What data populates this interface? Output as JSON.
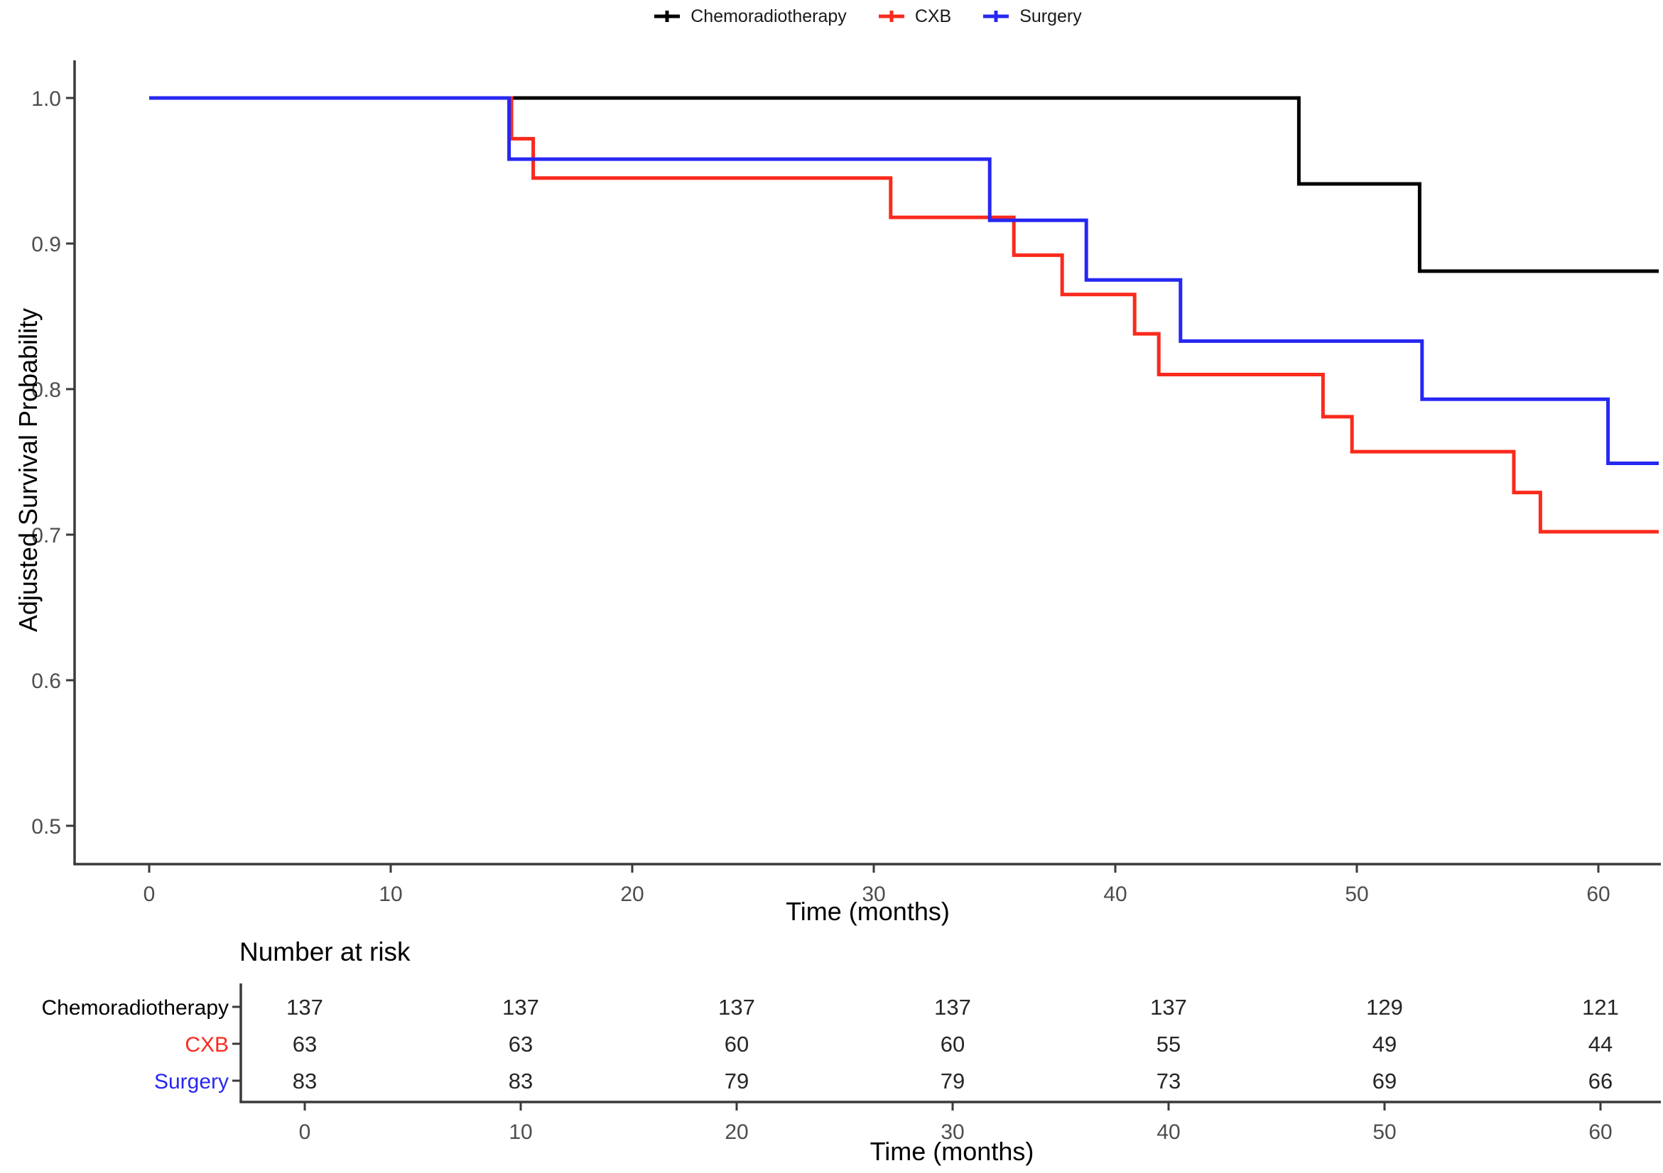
{
  "legend": {
    "items": [
      {
        "label": "Chemoradiotherapy",
        "color": "#000000"
      },
      {
        "label": "CXB",
        "color": "#fa2a1d"
      },
      {
        "label": "Surgery",
        "color": "#2727f2"
      }
    ]
  },
  "chart_data": {
    "type": "line",
    "subtype": "kaplan-meier-step",
    "title": "",
    "xlabel": "Time (months)",
    "ylabel": "Adjusted Survival Probability",
    "xlim": [
      0,
      62.5
    ],
    "ylim": [
      0.474,
      1.0
    ],
    "x_ticks": [
      0,
      10,
      20,
      30,
      40,
      50,
      60
    ],
    "y_tick_values": [
      1.0,
      0.9,
      0.8,
      0.7,
      0.6,
      0.5
    ],
    "y_tick_labels": [
      "1.0",
      "0.9",
      "0.8",
      "0.7",
      "0.6",
      "0.5"
    ],
    "grid": false,
    "legend_position": "top",
    "series": [
      {
        "name": "Chemoradiotherapy",
        "color": "#000000",
        "steps": [
          [
            0,
            1.0
          ],
          [
            47.6,
            1.0
          ],
          [
            47.6,
            0.941
          ],
          [
            52.6,
            0.941
          ],
          [
            52.6,
            0.881
          ],
          [
            62.5,
            0.881
          ]
        ]
      },
      {
        "name": "CXB",
        "color": "#fa2a1d",
        "steps": [
          [
            0,
            1.0
          ],
          [
            15.0,
            1.0
          ],
          [
            15.0,
            0.972
          ],
          [
            15.9,
            0.972
          ],
          [
            15.9,
            0.945
          ],
          [
            30.7,
            0.945
          ],
          [
            30.7,
            0.918
          ],
          [
            35.8,
            0.918
          ],
          [
            35.8,
            0.892
          ],
          [
            37.8,
            0.892
          ],
          [
            37.8,
            0.865
          ],
          [
            40.8,
            0.865
          ],
          [
            40.8,
            0.838
          ],
          [
            41.8,
            0.838
          ],
          [
            41.8,
            0.81
          ],
          [
            48.6,
            0.81
          ],
          [
            48.6,
            0.781
          ],
          [
            49.8,
            0.781
          ],
          [
            49.8,
            0.757
          ],
          [
            56.5,
            0.757
          ],
          [
            56.5,
            0.729
          ],
          [
            57.6,
            0.729
          ],
          [
            57.6,
            0.702
          ],
          [
            62.5,
            0.702
          ]
        ]
      },
      {
        "name": "Surgery",
        "color": "#2727f2",
        "steps": [
          [
            0,
            1.0
          ],
          [
            14.9,
            1.0
          ],
          [
            14.9,
            0.958
          ],
          [
            34.8,
            0.958
          ],
          [
            34.8,
            0.916
          ],
          [
            38.8,
            0.916
          ],
          [
            38.8,
            0.875
          ],
          [
            42.7,
            0.875
          ],
          [
            42.7,
            0.833
          ],
          [
            52.7,
            0.833
          ],
          [
            52.7,
            0.793
          ],
          [
            60.4,
            0.793
          ],
          [
            60.4,
            0.749
          ],
          [
            62.5,
            0.749
          ]
        ]
      }
    ]
  },
  "risk_table": {
    "title": "Number at risk",
    "xlabel": "Time (months)",
    "times": [
      0,
      10,
      20,
      30,
      40,
      50,
      60
    ],
    "rows": [
      {
        "label": "Chemoradiotherapy",
        "color": "#000000",
        "values": [
          "137",
          "137",
          "137",
          "137",
          "137",
          "129",
          "121"
        ]
      },
      {
        "label": "CXB",
        "color": "#fa2a1d",
        "values": [
          "63",
          "63",
          "60",
          "60",
          "55",
          "49",
          "44"
        ]
      },
      {
        "label": "Surgery",
        "color": "#2727f2",
        "values": [
          "83",
          "83",
          "79",
          "79",
          "73",
          "69",
          "66"
        ]
      }
    ]
  }
}
